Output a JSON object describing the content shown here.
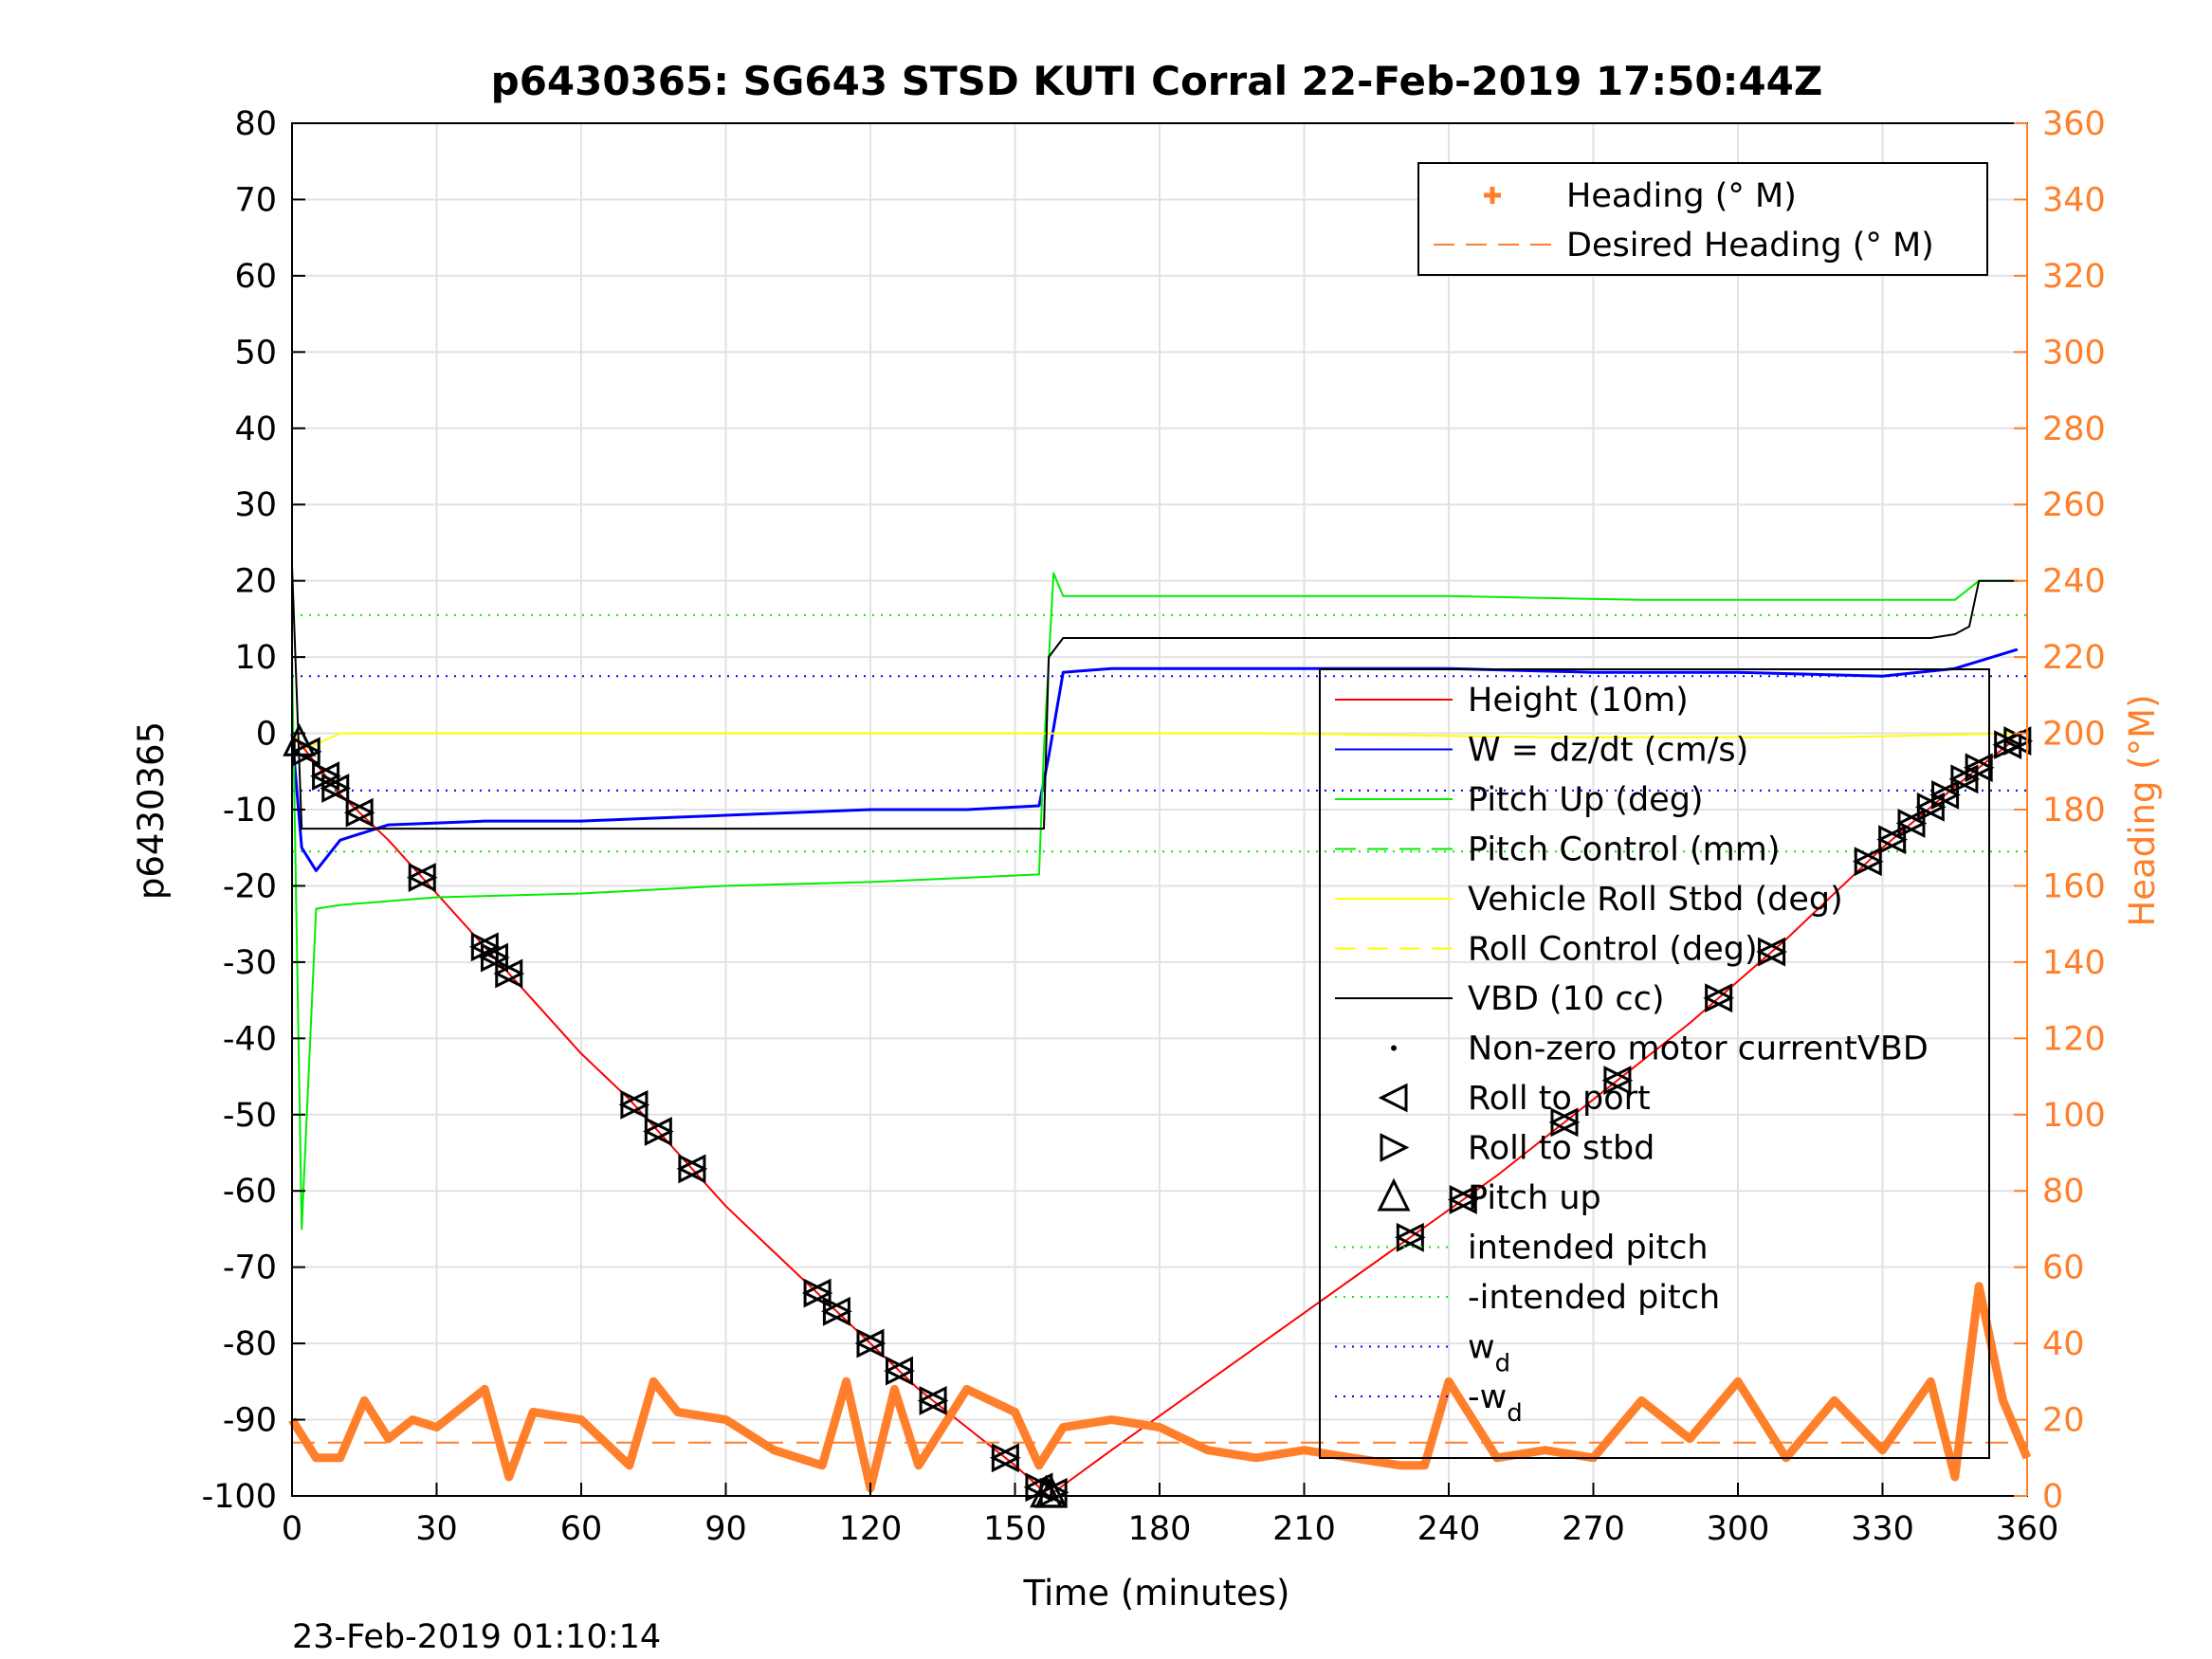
{
  "chart_data": {
    "type": "line",
    "title": "p6430365: SG643 STSD KUTI Corral 22-Feb-2019 17:50:44Z",
    "xlabel": "Time (minutes)",
    "ylabel": "p6430365",
    "y2label": "Heading (°M)",
    "footer": "23-Feb-2019 01:10:14",
    "xlim": [
      0,
      360
    ],
    "ylim": [
      -100,
      80
    ],
    "y2lim": [
      0,
      360
    ],
    "xticks": [
      0,
      30,
      60,
      90,
      120,
      150,
      180,
      210,
      240,
      270,
      300,
      330,
      360
    ],
    "yticks": [
      -100,
      -90,
      -80,
      -70,
      -60,
      -50,
      -40,
      -30,
      -20,
      -10,
      0,
      10,
      20,
      30,
      40,
      50,
      60,
      70,
      80
    ],
    "y2ticks": [
      0,
      20,
      40,
      60,
      80,
      100,
      120,
      140,
      160,
      180,
      200,
      220,
      240,
      260,
      280,
      300,
      320,
      340,
      360
    ],
    "grid": true,
    "colors": {
      "height": "#ff0000",
      "w": "#0000ff",
      "pitch": "#00ee00",
      "roll": "#ffff00",
      "vbd": "#000000",
      "heading": "#ff7f2a"
    },
    "legend_right_axis": {
      "placement": "top-right",
      "entries": [
        "Heading (° M)",
        "Desired Heading (° M)"
      ]
    },
    "legend_left_axis": {
      "placement": "center-right",
      "entries": [
        "Height (10m)",
        "W = dz/dt (cm/s)",
        "Pitch Up (deg)",
        "Pitch Control (mm)",
        "Vehicle Roll Stbd (deg)",
        "Roll Control (deg)",
        "VBD (10 cc)",
        "Non-zero motor currentVBD",
        "Roll to port",
        "Roll to stbd",
        "Pitch up",
        "intended pitch",
        "-intended pitch",
        "w",
        "-w"
      ],
      "subscript": "d"
    },
    "series": [
      {
        "name": "Height (10m)",
        "axis": "left",
        "x": [
          0,
          10,
          20,
          30,
          40,
          50,
          60,
          70,
          80,
          90,
          100,
          110,
          120,
          130,
          140,
          150,
          157,
          170,
          190,
          210,
          230,
          250,
          270,
          290,
          310,
          330,
          345,
          357
        ],
        "y": [
          0,
          -8,
          -14,
          -21,
          -28,
          -35,
          -42,
          -48,
          -55,
          -62,
          -68,
          -74,
          -80,
          -86,
          -91,
          -96,
          -100,
          -94,
          -85,
          -76,
          -67,
          -58,
          -48,
          -38,
          -27,
          -15,
          -7,
          -1
        ]
      },
      {
        "name": "W = dz/dt (cm/s)",
        "axis": "left",
        "x": [
          0,
          2,
          5,
          10,
          20,
          40,
          60,
          80,
          100,
          120,
          140,
          155,
          157,
          160,
          170,
          190,
          210,
          240,
          270,
          300,
          330,
          345,
          358
        ],
        "y": [
          0,
          -15,
          -18,
          -14,
          -12,
          -11.5,
          -11.5,
          -11,
          -10.5,
          -10,
          -10,
          -9.5,
          -3,
          8,
          8.5,
          8.5,
          8.5,
          8.5,
          8,
          8,
          7.5,
          8.5,
          11
        ]
      },
      {
        "name": "Pitch Up (deg)",
        "axis": "left",
        "x": [
          0,
          2,
          5,
          10,
          30,
          60,
          90,
          120,
          155,
          156,
          158,
          160,
          170,
          200,
          240,
          280,
          320,
          345,
          350,
          358
        ],
        "y": [
          10,
          -65,
          -23,
          -22.5,
          -21.5,
          -21,
          -20,
          -19.5,
          -18.5,
          -2,
          21,
          18,
          18,
          18,
          18,
          17.5,
          17.5,
          17.5,
          20,
          20
        ]
      },
      {
        "name": "Vehicle Roll Stbd (deg)",
        "axis": "left",
        "x": [
          0,
          3,
          10,
          40,
          80,
          120,
          155,
          158,
          200,
          260,
          320,
          358
        ],
        "y": [
          0,
          -2,
          0,
          0,
          0,
          0,
          0,
          0,
          0,
          -0.5,
          -0.5,
          0
        ]
      },
      {
        "name": "VBD (10 cc)",
        "axis": "left",
        "x": [
          0,
          2,
          156,
          157,
          160,
          200,
          250,
          300,
          340,
          345,
          348,
          350,
          358
        ],
        "y": [
          22,
          -12.5,
          -12.5,
          10,
          12.5,
          12.5,
          12.5,
          12.5,
          12.5,
          13,
          14,
          20,
          20
        ]
      },
      {
        "name": "Heading (° M)",
        "axis": "right",
        "x": [
          0,
          5,
          10,
          15,
          20,
          25,
          30,
          40,
          45,
          50,
          60,
          70,
          75,
          80,
          90,
          100,
          110,
          115,
          120,
          125,
          130,
          140,
          150,
          155,
          160,
          170,
          180,
          190,
          200,
          210,
          220,
          230,
          235,
          240,
          250,
          260,
          270,
          280,
          290,
          300,
          310,
          320,
          330,
          340,
          345,
          350,
          355,
          360
        ],
        "y": [
          20,
          10,
          10,
          25,
          15,
          20,
          18,
          28,
          5,
          22,
          20,
          8,
          30,
          22,
          20,
          12,
          8,
          30,
          2,
          28,
          8,
          28,
          22,
          8,
          18,
          20,
          18,
          12,
          10,
          12,
          10,
          8,
          8,
          30,
          10,
          12,
          10,
          25,
          15,
          30,
          10,
          25,
          12,
          30,
          5,
          55,
          25,
          10
        ]
      },
      {
        "name": "Desired Heading (° M)",
        "axis": "right",
        "x": [
          0,
          360
        ],
        "y": [
          14,
          14
        ]
      }
    ],
    "markers": {
      "rolls_x": [
        3,
        7,
        9,
        14,
        27,
        40,
        42,
        45,
        71,
        76,
        83,
        109,
        113,
        120,
        126,
        133,
        148,
        155,
        158,
        232,
        243,
        264,
        275,
        296,
        307,
        327,
        332,
        336,
        340,
        343,
        347,
        350,
        356,
        358
      ],
      "pitch_up_x": [
        1.5,
        156.5,
        157.5
      ]
    },
    "reference_lines": [
      {
        "name": "intended pitch",
        "y": 15.5
      },
      {
        "name": "-intended pitch",
        "y": -15.5
      },
      {
        "name": "w",
        "y": 7.5
      },
      {
        "name": "-w",
        "y": -7.5
      }
    ]
  }
}
